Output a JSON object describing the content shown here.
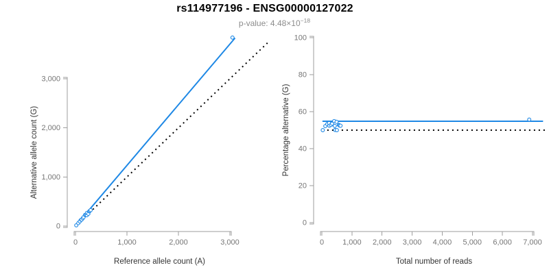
{
  "header": {
    "title": "rs114977196 - ENSG00000127022",
    "subtitle_prefix": "p-value: 4.48×10",
    "subtitle_exponent": "−18"
  },
  "colors": {
    "accent_blue": "#1E88E5",
    "reference_black": "#000000",
    "axis_line": "#9e9e9e",
    "tick_label": "#757575",
    "axis_title": "#333333",
    "subtitle_gray": "#8c8c8c"
  },
  "chart_data": [
    {
      "type": "scatter",
      "panel": "left",
      "xlabel": "Reference allele count (A)",
      "ylabel": "Alternative allele count (G)",
      "xlim": [
        0,
        3100
      ],
      "ylim": [
        0,
        3900
      ],
      "xticks": [
        0,
        1000,
        2000,
        3000
      ],
      "yticks": [
        0,
        1000,
        2000,
        3000
      ],
      "grid": false,
      "legend": false,
      "marker": "open-circle",
      "points": [
        [
          15,
          15
        ],
        [
          55,
          60
        ],
        [
          84,
          96
        ],
        [
          110,
          128
        ],
        [
          119,
          131
        ],
        [
          143,
          160
        ],
        [
          158,
          182
        ],
        [
          185,
          225
        ],
        [
          205,
          225
        ],
        [
          220,
          221
        ],
        [
          223,
          267
        ],
        [
          250,
          250
        ],
        [
          268,
          300
        ],
        [
          280,
          310
        ],
        [
          295,
          325
        ],
        [
          3050,
          3840
        ]
      ],
      "lines": [
        {
          "name": "regression-line",
          "style": "solid",
          "color": "#1E88E5",
          "x1": 0,
          "y1": 0,
          "x2": 3100,
          "y2": 3830
        },
        {
          "name": "identity-line",
          "style": "dotted",
          "color": "#000000",
          "x1": 0,
          "y1": 0,
          "x2": 3730,
          "y2": 3730
        }
      ]
    },
    {
      "type": "scatter",
      "panel": "right",
      "xlabel": "Total number of reads",
      "ylabel": "Percentage alternative (G)",
      "xlim": [
        0,
        7430
      ],
      "ylim": [
        0,
        100
      ],
      "xticks": [
        0,
        1000,
        2000,
        3000,
        4000,
        5000,
        6000,
        7000
      ],
      "yticks": [
        0,
        20,
        40,
        60,
        80,
        100
      ],
      "grid": false,
      "legend": false,
      "marker": "open-circle",
      "points": [
        [
          30,
          50
        ],
        [
          115,
          52.2
        ],
        [
          180,
          53.3
        ],
        [
          238,
          53.8
        ],
        [
          250,
          52.4
        ],
        [
          303,
          52.8
        ],
        [
          340,
          53.5
        ],
        [
          410,
          54.9
        ],
        [
          430,
          52.3
        ],
        [
          441,
          50.1
        ],
        [
          490,
          54.5
        ],
        [
          500,
          50
        ],
        [
          568,
          52.8
        ],
        [
          590,
          52.5
        ],
        [
          620,
          52.4
        ],
        [
          6890,
          55.7
        ]
      ],
      "lines": [
        {
          "name": "fitted-proportion-line",
          "style": "solid",
          "color": "#1E88E5",
          "x1": 20,
          "y1": 54.8,
          "x2": 7350,
          "y2": 54.8
        },
        {
          "name": "null-proportion-line",
          "style": "dotted",
          "color": "#000000",
          "x1": 20,
          "y1": 50,
          "x2": 7430,
          "y2": 50
        }
      ]
    }
  ]
}
